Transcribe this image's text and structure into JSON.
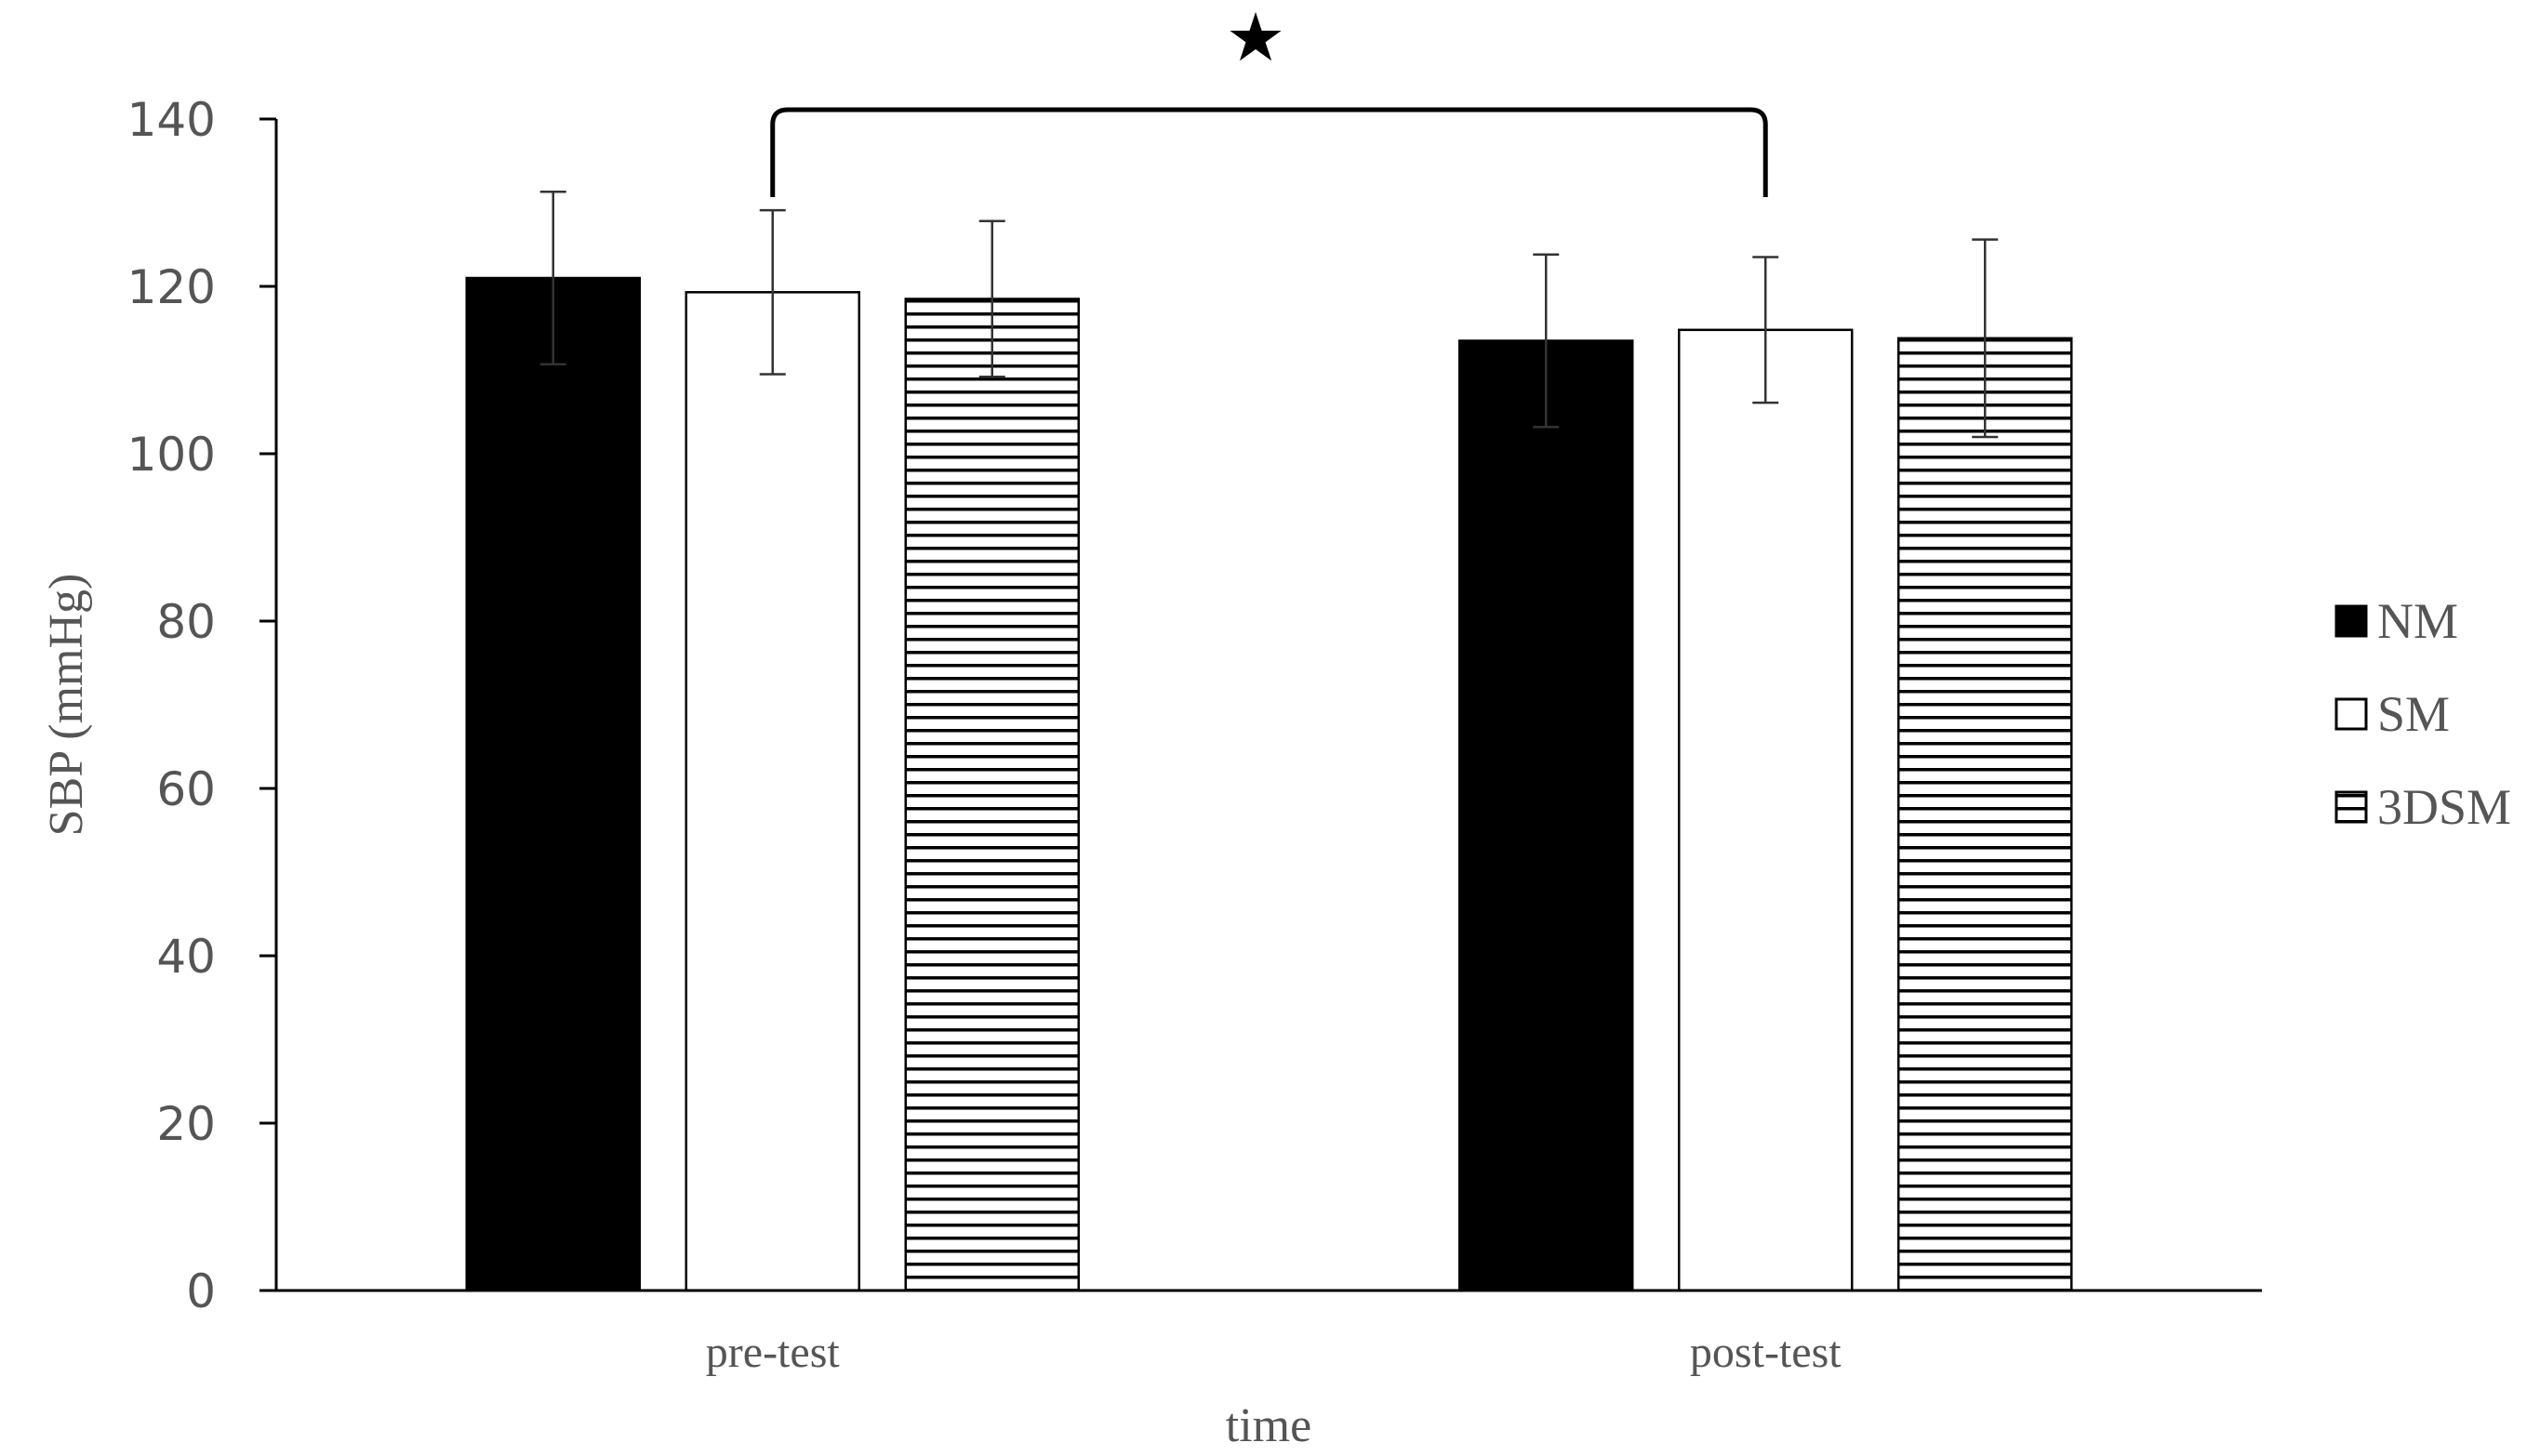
{
  "chart_data": {
    "type": "bar",
    "title": "",
    "xlabel": "time",
    "ylabel": "SBP (mmHg)",
    "ylim": [
      0,
      140
    ],
    "yticks": [
      0,
      20,
      40,
      60,
      80,
      100,
      120,
      140
    ],
    "categories": [
      "pre-test",
      "post-test"
    ],
    "series": [
      {
        "name": "NM",
        "values": [
          121,
          113.5
        ],
        "errors": [
          10.3,
          10.3
        ],
        "fill": "solid-black"
      },
      {
        "name": "SM",
        "values": [
          119.3,
          114.8
        ],
        "errors": [
          9.8,
          8.7
        ],
        "fill": "white"
      },
      {
        "name": "3DSM",
        "values": [
          118.5,
          113.8
        ],
        "errors": [
          9.3,
          11.8
        ],
        "fill": "horizontal-stripes"
      }
    ],
    "legend": "right",
    "grid": false,
    "annotation": {
      "symbol": "★",
      "between": [
        [
          "pre-test",
          "SM"
        ],
        [
          "post-test",
          "SM"
        ]
      ]
    },
    "colors": {
      "bar_stroke": "#000000",
      "axis": "#000000",
      "error_bar": "#333333",
      "text": "#555555"
    }
  }
}
